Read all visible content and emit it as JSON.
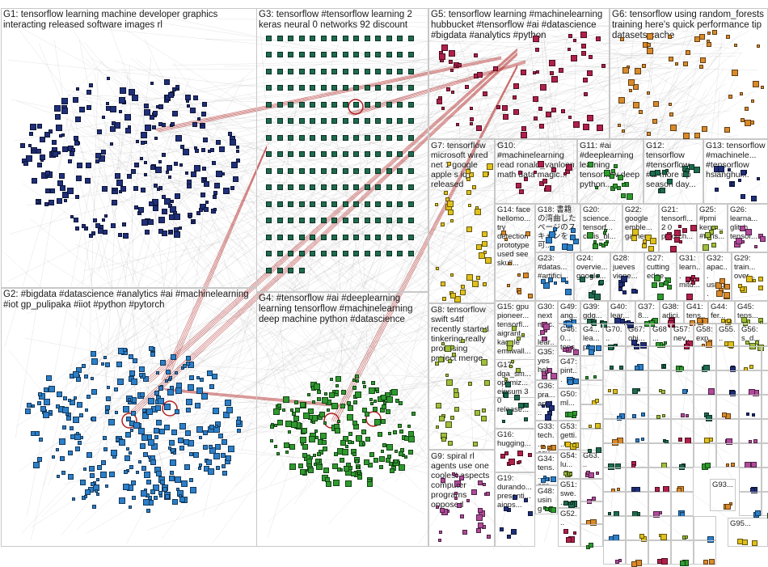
{
  "colors": {
    "g1": "#1f2f7a",
    "g2": "#2c7fc9",
    "g3": "#1e6b4e",
    "g4": "#2f9a2f",
    "g5": "#b0204a",
    "g6": "#d98a2a",
    "g7": "#e0c01a",
    "g8": "#9fbf3a",
    "g9": "#b04a9a",
    "edge": "#9a9a9a",
    "edge_red": "#b02020",
    "border": "#c8c8c8"
  },
  "groups": [
    {
      "id": "G1",
      "label": "G1: tensorflow learning machine developer graphics interacting released software images rl",
      "color": "g1",
      "nodes": 260
    },
    {
      "id": "G2",
      "label": "G2: #bigdata #datascience #analytics #ai #machinelearning #iot gp_pulipaka #iiot #python #pytorch",
      "color": "g2",
      "nodes": 300
    },
    {
      "id": "G3",
      "label": "G3: tensorflow #tensorflow learning 2 keras neural 0 networks 92 discount",
      "color": "g3",
      "nodes": 200
    },
    {
      "id": "G4",
      "label": "G4: #tensorflow #ai #deeplearning learning tensorflow #machinelearning deep machine python #datascience",
      "color": "g4",
      "nodes": 220
    },
    {
      "id": "G5",
      "label": "G5: tensorflow learning #machinelearning hubbucket #tensorflow #ai #datascience #bigdata #analytics #python",
      "color": "g5",
      "nodes": 70
    },
    {
      "id": "G6",
      "label": "G6: tensorflow using random_forests training here's quick performance tip datasets cache",
      "color": "g6",
      "nodes": 55
    },
    {
      "id": "G7",
      "label": "G7: tensorflow microsoft wired net 1 google apple s iq released",
      "color": "g7",
      "nodes": 40
    },
    {
      "id": "G8",
      "label": "G8: tensorflow swift s4tf recently started tinkering really promising project merge",
      "color": "g8",
      "nodes": 30
    },
    {
      "id": "G9",
      "label": "G9: spiral rl agents use one coolest aspects computer programs opposed",
      "color": "g9",
      "nodes": 30
    },
    {
      "id": "G10",
      "label": "G10: #machinelearning read ronald_vanloon math data magic...",
      "color": "g5",
      "nodes": 14
    },
    {
      "id": "G11",
      "label": "G11: #ai #deeplearning learning tensorflow deep python...",
      "color": "g4",
      "nodes": 14
    },
    {
      "id": "G12",
      "label": "G12: tensorflow #tensorflow #ai more up season day...",
      "color": "g3",
      "nodes": 12
    },
    {
      "id": "G13",
      "label": "G13: tensorflow #machinele... #tensorflow hsianghui...",
      "color": "g1",
      "nodes": 12
    },
    {
      "id": "G14",
      "label": "G14: face hellomo... try detection prototype used see skull...",
      "color": "g6",
      "nodes": 10
    },
    {
      "id": "G18",
      "label": "G18: 書籍 の湾曲した ページのス キャンを可...",
      "color": "g2",
      "nodes": 10
    },
    {
      "id": "G20",
      "label": "G20: science... tensorf... chris_bl...",
      "color": "g4",
      "nodes": 9
    },
    {
      "id": "G22",
      "label": "G22: google emble... gather...",
      "color": "g7",
      "nodes": 9
    },
    {
      "id": "G21",
      "label": "G21: tensorfl... 2 0 pytorch...",
      "color": "g5",
      "nodes": 9
    },
    {
      "id": "G25",
      "label": "G25: #pmi kenw... #tens...",
      "color": "g8",
      "nodes": 8
    },
    {
      "id": "G26",
      "label": "G26: learna... glitch tensor...",
      "color": "g9",
      "nodes": 8
    },
    {
      "id": "G23",
      "label": "G23: #datas... #artifici...",
      "color": "g2",
      "nodes": 8
    },
    {
      "id": "G24",
      "label": "G24: overvie... google...",
      "color": "g3",
      "nodes": 8
    },
    {
      "id": "G28",
      "label": "G28: jueves viene...",
      "color": "g1",
      "nodes": 7
    },
    {
      "id": "G27",
      "label": "G27: cutting edge...",
      "color": "g4",
      "nodes": 7
    },
    {
      "id": "G31",
      "label": "G31: learn... mitd...",
      "color": "g5",
      "nodes": 7
    },
    {
      "id": "G32",
      "label": "G32: apac... using...",
      "color": "g6",
      "nodes": 7
    },
    {
      "id": "G29",
      "label": "G29: train... over...",
      "color": "g7",
      "nodes": 7
    },
    {
      "id": "G15",
      "label": "G15: gpu pioneer... tensorfl... aigrant_ kaggle emilwall...",
      "color": "g8",
      "nodes": 9
    },
    {
      "id": "G30",
      "label": "G30: next mac... lear...",
      "color": "g9",
      "nodes": 6
    },
    {
      "id": "G49",
      "label": "G49: ang...",
      "color": "g2",
      "nodes": 5
    },
    {
      "id": "G39",
      "label": "G39: gdg...",
      "color": "g3",
      "nodes": 5
    },
    {
      "id": "G40",
      "label": "G40: lear...",
      "color": "g1",
      "nodes": 5
    },
    {
      "id": "G37",
      "label": "G37: 8...",
      "color": "g4",
      "nodes": 5
    },
    {
      "id": "G38",
      "label": "G38: adici...",
      "color": "g5",
      "nodes": 5
    },
    {
      "id": "G41",
      "label": "G41: tens...",
      "color": "g6",
      "nodes": 5
    },
    {
      "id": "G44",
      "label": "G44: fer...",
      "color": "g7",
      "nodes": 5
    },
    {
      "id": "G45",
      "label": "G45: tens...",
      "color": "g8",
      "nodes": 5
    },
    {
      "id": "G46",
      "label": "G46: 0... tens...",
      "color": "g9",
      "nodes": 5
    },
    {
      "id": "G4_",
      "label": "G4... lea... po...",
      "color": "g2",
      "nodes": 5
    },
    {
      "id": "G70",
      "label": "G70...",
      "color": "g3",
      "nodes": 4
    },
    {
      "id": "G67",
      "label": "G67: obj...",
      "color": "g1",
      "nodes": 4
    },
    {
      "id": "G68",
      "label": "G68...",
      "color": "g4",
      "nodes": 4
    },
    {
      "id": "G57",
      "label": "G57: nev...",
      "color": "g5",
      "nodes": 4
    },
    {
      "id": "G58",
      "label": "G58: exp...",
      "color": "g6",
      "nodes": 4
    },
    {
      "id": "G55",
      "label": "G55...",
      "color": "g7",
      "nodes": 4
    },
    {
      "id": "G56",
      "label": "G56: s_d...",
      "color": "g8",
      "nodes": 4
    },
    {
      "id": "G35",
      "label": "G35: yes help",
      "color": "g9",
      "nodes": 5
    },
    {
      "id": "G47",
      "label": "G47: pint...",
      "color": "g2",
      "nodes": 5
    },
    {
      "id": "G17",
      "label": "G17: dga_sm... optimiz... einsum 3 0 release...",
      "color": "g3",
      "nodes": 9
    },
    {
      "id": "G36",
      "label": "G36: pra... appl...",
      "color": "g1",
      "nodes": 5
    },
    {
      "id": "G50",
      "label": "G50: ml...",
      "color": "g4",
      "nodes": 5
    },
    {
      "id": "G16",
      "label": "G16: hugging...",
      "color": "g5",
      "nodes": 8
    },
    {
      "id": "G33",
      "label": "G33: tech... cov...",
      "color": "g6",
      "nodes": 5
    },
    {
      "id": "G53",
      "label": "G53: getti...",
      "color": "g7",
      "nodes": 5
    },
    {
      "id": "G54",
      "label": "G54: lu...",
      "color": "g8",
      "nodes": 5
    },
    {
      "id": "G63",
      "label": "G63...",
      "color": "g9",
      "nodes": 4
    },
    {
      "id": "G34",
      "label": "G34: tens... apr...",
      "color": "g2",
      "nodes": 5
    },
    {
      "id": "G51",
      "label": "G51: swe...",
      "color": "g3",
      "nodes": 5
    },
    {
      "id": "G19",
      "label": "G19: durando... presenti... aiops...",
      "color": "g1",
      "nodes": 8
    },
    {
      "id": "G48",
      "label": "G48: using mac...",
      "color": "g4",
      "nodes": 5
    },
    {
      "id": "G52",
      "label": "G52...",
      "color": "g5",
      "nodes": 5
    },
    {
      "id": "G93",
      "label": "G93...",
      "color": "g6",
      "nodes": 3
    },
    {
      "id": "G95",
      "label": "G95...",
      "color": "g7",
      "nodes": 3
    }
  ]
}
